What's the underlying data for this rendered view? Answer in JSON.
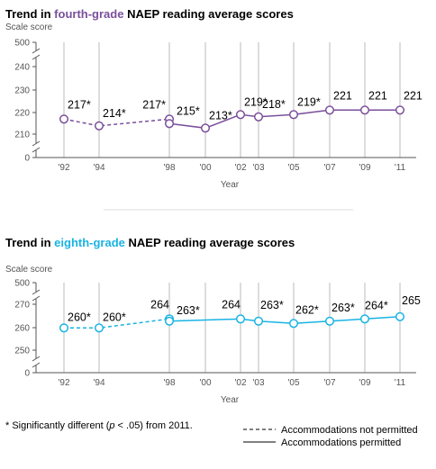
{
  "chart_data": [
    {
      "type": "line",
      "title": {
        "before": "Trend in ",
        "highlight": "fourth-grade",
        "after": " NAEP reading average scores"
      },
      "accent_color": "#7a4f9b",
      "ylabel": "Scale score",
      "xlabel": "Year",
      "y_ticks": [
        "500",
        "240",
        "230",
        "220",
        "210",
        "0"
      ],
      "ylim": [
        205,
        245
      ],
      "axis_break": true,
      "x_ticks": [
        "'92",
        "'94",
        "'98",
        "'00",
        "'02",
        "'03",
        "'05",
        "'07",
        "'09",
        "'11"
      ],
      "series": [
        {
          "name": "Accommodations not permitted",
          "style": "dashed",
          "points": [
            {
              "year": 1992,
              "value": 217,
              "label": "217*"
            },
            {
              "year": 1994,
              "value": 214,
              "label": "214*"
            },
            {
              "year": 1998,
              "value": 217,
              "label": "217*"
            }
          ]
        },
        {
          "name": "Accommodations permitted",
          "style": "solid",
          "points": [
            {
              "year": 1998,
              "value": 215,
              "label": "215*"
            },
            {
              "year": 2000,
              "value": 213,
              "label": "213*"
            },
            {
              "year": 2002,
              "value": 219,
              "label": "219*"
            },
            {
              "year": 2003,
              "value": 218,
              "label": "218*"
            },
            {
              "year": 2005,
              "value": 219,
              "label": "219*"
            },
            {
              "year": 2007,
              "value": 221,
              "label": "221"
            },
            {
              "year": 2009,
              "value": 221,
              "label": "221"
            },
            {
              "year": 2011,
              "value": 221,
              "label": "221"
            }
          ]
        }
      ]
    },
    {
      "type": "line",
      "title": {
        "before": "Trend in ",
        "highlight": "eighth-grade",
        "after": " NAEP reading average scores"
      },
      "accent_color": "#19b3e3",
      "ylabel": "Scale score",
      "xlabel": "Year",
      "y_ticks": [
        "500",
        "270",
        "260",
        "250",
        "0"
      ],
      "ylim": [
        245,
        275
      ],
      "axis_break": true,
      "x_ticks": [
        "'92",
        "'94",
        "'98",
        "'00",
        "'02",
        "'03",
        "'05",
        "'07",
        "'09",
        "'11"
      ],
      "series": [
        {
          "name": "Accommodations not permitted",
          "style": "dashed",
          "points": [
            {
              "year": 1992,
              "value": 260,
              "label": "260*"
            },
            {
              "year": 1994,
              "value": 260,
              "label": "260*"
            },
            {
              "year": 1998,
              "value": 264,
              "label": "264"
            }
          ]
        },
        {
          "name": "Accommodations permitted",
          "style": "solid",
          "points": [
            {
              "year": 1998,
              "value": 263,
              "label": "263*"
            },
            {
              "year": 2002,
              "value": 264,
              "label": "264"
            },
            {
              "year": 2003,
              "value": 263,
              "label": "263*"
            },
            {
              "year": 2005,
              "value": 262,
              "label": "262*"
            },
            {
              "year": 2007,
              "value": 263,
              "label": "263*"
            },
            {
              "year": 2009,
              "value": 264,
              "label": "264*"
            },
            {
              "year": 2011,
              "value": 265,
              "label": "265"
            }
          ]
        }
      ]
    }
  ],
  "footnote": {
    "before": "* Significantly different (",
    "italic": "p",
    "after": " < .05) from 2011."
  },
  "legend": {
    "dashed_label": "Accommodations not permitted",
    "solid_label": "Accommodations permitted"
  }
}
